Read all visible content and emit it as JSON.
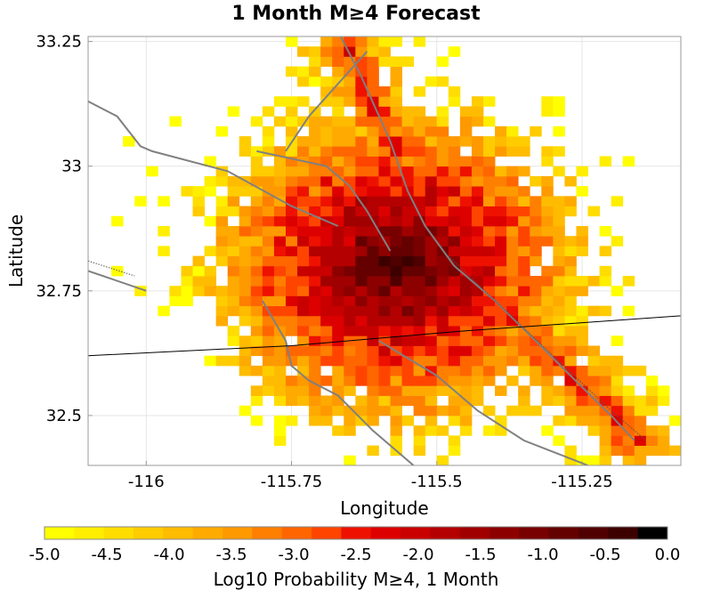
{
  "chart_data": {
    "type": "heatmap",
    "title": "1 Month M≥4 Forecast",
    "xlabel": "Longitude",
    "ylabel": "Latitude",
    "xlim": [
      -116.1,
      -115.08
    ],
    "ylim": [
      32.4,
      33.26
    ],
    "xticks": [
      {
        "value": -116,
        "label": "-116"
      },
      {
        "value": -115.75,
        "label": "-115.75"
      },
      {
        "value": -115.5,
        "label": "-115.5"
      },
      {
        "value": -115.25,
        "label": "-115.25"
      }
    ],
    "yticks": [
      {
        "value": 33.25,
        "label": "33.25"
      },
      {
        "value": 33,
        "label": "33"
      },
      {
        "value": 32.75,
        "label": "32.75"
      },
      {
        "value": 32.5,
        "label": "32.5"
      }
    ],
    "grid": true,
    "cell_size_deg": 0.02,
    "colorbar": {
      "label": "Log10 Probability M≥4, 1 Month",
      "min": -5.0,
      "max": 0.0,
      "placement": "bottom",
      "ticks": [
        {
          "value": -5.0,
          "label": "-5.0"
        },
        {
          "value": -4.5,
          "label": "-4.5"
        },
        {
          "value": -4.0,
          "label": "-4.0"
        },
        {
          "value": -3.5,
          "label": "-3.5"
        },
        {
          "value": -3.0,
          "label": "-3.0"
        },
        {
          "value": -2.5,
          "label": "-2.5"
        },
        {
          "value": -2.0,
          "label": "-2.0"
        },
        {
          "value": -1.5,
          "label": "-1.5"
        },
        {
          "value": -1.0,
          "label": "-1.0"
        },
        {
          "value": -0.5,
          "label": "-0.5"
        },
        {
          "value": 0.0,
          "label": "0.0"
        }
      ],
      "colors": [
        "#ffff00",
        "#ffee00",
        "#ffdd00",
        "#ffcc00",
        "#ffbb00",
        "#ffaa00",
        "#ff9900",
        "#ff7f00",
        "#ff6600",
        "#ff4400",
        "#ee1100",
        "#dd0000",
        "#c80000",
        "#b40000",
        "#a00000",
        "#8c0000",
        "#780000",
        "#640000",
        "#500000",
        "#3c0000",
        "#000000"
      ]
    },
    "hotspots": [
      {
        "lon": -115.57,
        "lat": 32.8,
        "peak": -0.6
      },
      {
        "lon": -115.64,
        "lat": 33.14,
        "peak": -3.4
      },
      {
        "lon": -115.35,
        "lat": 32.66,
        "peak": -2.9
      }
    ],
    "faults": [
      {
        "style": "gray",
        "points": [
          [
            -115.67,
            33.27
          ],
          [
            -115.63,
            33.18
          ],
          [
            -115.58,
            33.05
          ],
          [
            -115.55,
            32.95
          ],
          [
            -115.52,
            32.88
          ],
          [
            -115.47,
            32.8
          ],
          [
            -115.4,
            32.73
          ],
          [
            -115.33,
            32.65
          ],
          [
            -115.27,
            32.58
          ],
          [
            -115.2,
            32.5
          ],
          [
            -115.16,
            32.45
          ]
        ]
      },
      {
        "style": "gray",
        "points": [
          [
            -115.62,
            33.23
          ],
          [
            -115.72,
            33.1
          ],
          [
            -115.76,
            33.03
          ]
        ]
      },
      {
        "style": "gray",
        "points": [
          [
            -115.81,
            33.03
          ],
          [
            -115.69,
            33.0
          ],
          [
            -115.65,
            32.96
          ],
          [
            -115.62,
            32.91
          ],
          [
            -115.58,
            32.83
          ]
        ]
      },
      {
        "style": "gray",
        "points": [
          [
            -116.1,
            33.13
          ],
          [
            -116.05,
            33.1
          ],
          [
            -116.01,
            33.04
          ],
          [
            -115.99,
            33.03
          ],
          [
            -115.86,
            32.99
          ],
          [
            -115.75,
            32.92
          ],
          [
            -115.67,
            32.88
          ]
        ]
      },
      {
        "style": "gray",
        "points": [
          [
            -116.1,
            32.79
          ],
          [
            -116.0,
            32.75
          ]
        ]
      },
      {
        "style": "gray",
        "points": [
          [
            -115.8,
            32.73
          ],
          [
            -115.76,
            32.65
          ],
          [
            -115.75,
            32.6
          ],
          [
            -115.72,
            32.57
          ],
          [
            -115.67,
            32.54
          ],
          [
            -115.61,
            32.47
          ],
          [
            -115.54,
            32.4
          ]
        ]
      },
      {
        "style": "gray",
        "points": [
          [
            -115.6,
            32.65
          ],
          [
            -115.5,
            32.58
          ],
          [
            -115.43,
            32.51
          ],
          [
            -115.35,
            32.45
          ],
          [
            -115.24,
            32.4
          ]
        ]
      },
      {
        "style": "black",
        "points": [
          [
            -116.1,
            32.62
          ],
          [
            -115.75,
            32.64
          ],
          [
            -115.45,
            32.67
          ],
          [
            -115.08,
            32.7
          ]
        ]
      },
      {
        "style": "dotted",
        "points": [
          [
            -116.1,
            32.81
          ],
          [
            -116.02,
            32.78
          ]
        ]
      },
      {
        "style": "dotted",
        "points": [
          [
            -115.48,
            32.82
          ],
          [
            -115.4,
            32.73
          ],
          [
            -115.3,
            32.62
          ],
          [
            -115.2,
            32.51
          ],
          [
            -115.14,
            32.45
          ]
        ]
      }
    ]
  }
}
